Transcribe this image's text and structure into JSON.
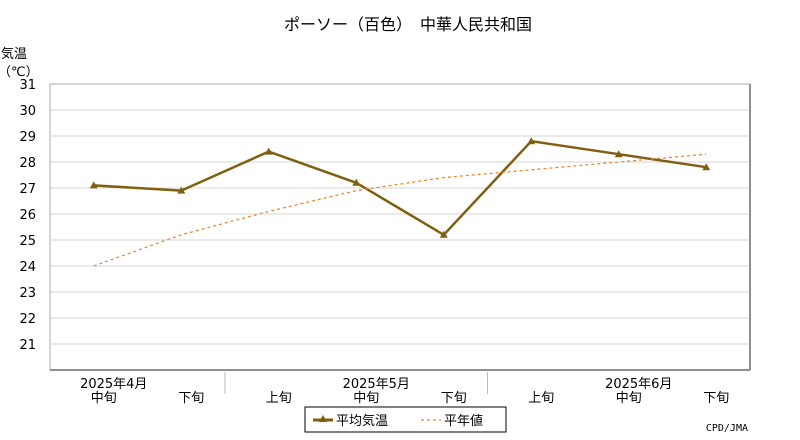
{
  "chart_data": {
    "type": "line",
    "title": "ポーソー（百色）　中華人民共和国",
    "ylabel_line1": "気温",
    "ylabel_line2": "（℃）",
    "ylim": [
      20,
      31
    ],
    "yticks": [
      21,
      22,
      23,
      24,
      25,
      26,
      27,
      28,
      29,
      30,
      31
    ],
    "grid": true,
    "categories": [
      "中旬",
      "下旬",
      "上旬",
      "中旬",
      "下旬",
      "上旬",
      "中旬",
      "下旬"
    ],
    "month_labels": [
      {
        "text": "2025年4月",
        "category_index": 0
      },
      {
        "text": "2025年5月",
        "category_index": 3
      },
      {
        "text": "2025年6月",
        "category_index": 6
      }
    ],
    "series": [
      {
        "name": "平均気温",
        "values": [
          27.1,
          26.9,
          28.4,
          27.2,
          25.2,
          28.8,
          28.3,
          27.8
        ],
        "color": "#806010",
        "style": "solid",
        "marker": "triangle"
      },
      {
        "name": "平年値",
        "values": [
          24.0,
          25.2,
          26.1,
          26.9,
          27.4,
          27.7,
          28.0,
          28.3
        ],
        "color": "#f08020",
        "style": "dashed",
        "marker": "none"
      }
    ],
    "source": "CPD/JMA",
    "legend_position": "bottom-center"
  }
}
